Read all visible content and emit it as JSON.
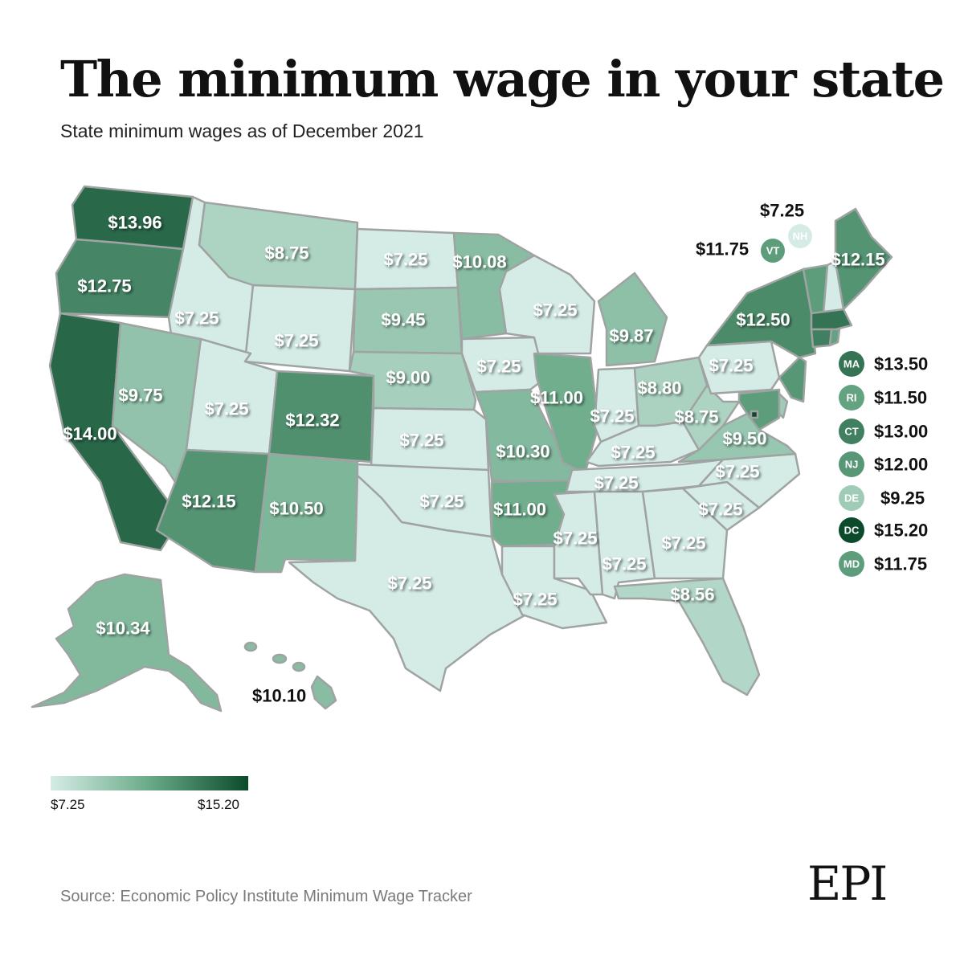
{
  "title": "The minimum wage in your state",
  "subtitle": "State minimum wages as of December 2021",
  "source": "Source: Economic Policy Institute Minimum Wage Tracker",
  "logo": "EPI",
  "legend": {
    "min_label": "$7.25",
    "max_label": "$15.20",
    "min_value": 7.25,
    "max_value": 15.2
  },
  "colors": {
    "low": "#d5ece6",
    "high": "#0c4a2c",
    "border": "#9fa3a2"
  },
  "states": [
    {
      "abbr": "WA",
      "wage": 13.96,
      "label": "$13.96"
    },
    {
      "abbr": "OR",
      "wage": 12.75,
      "label": "$12.75"
    },
    {
      "abbr": "CA",
      "wage": 14.0,
      "label": "$14.00"
    },
    {
      "abbr": "ID",
      "wage": 7.25,
      "label": "$7.25"
    },
    {
      "abbr": "NV",
      "wage": 9.75,
      "label": "$9.75"
    },
    {
      "abbr": "MT",
      "wage": 8.75,
      "label": "$8.75"
    },
    {
      "abbr": "WY",
      "wage": 7.25,
      "label": "$7.25"
    },
    {
      "abbr": "UT",
      "wage": 7.25,
      "label": "$7.25"
    },
    {
      "abbr": "AZ",
      "wage": 12.15,
      "label": "$12.15"
    },
    {
      "abbr": "CO",
      "wage": 12.32,
      "label": "$12.32"
    },
    {
      "abbr": "NM",
      "wage": 10.5,
      "label": "$10.50"
    },
    {
      "abbr": "ND",
      "wage": 7.25,
      "label": "$7.25"
    },
    {
      "abbr": "SD",
      "wage": 9.45,
      "label": "$9.45"
    },
    {
      "abbr": "NE",
      "wage": 9.0,
      "label": "$9.00"
    },
    {
      "abbr": "KS",
      "wage": 7.25,
      "label": "$7.25"
    },
    {
      "abbr": "OK",
      "wage": 7.25,
      "label": "$7.25"
    },
    {
      "abbr": "TX",
      "wage": 7.25,
      "label": "$7.25"
    },
    {
      "abbr": "MN",
      "wage": 10.08,
      "label": "$10.08"
    },
    {
      "abbr": "IA",
      "wage": 7.25,
      "label": "$7.25"
    },
    {
      "abbr": "MO",
      "wage": 10.3,
      "label": "$10.30"
    },
    {
      "abbr": "AR",
      "wage": 11.0,
      "label": "$11.00"
    },
    {
      "abbr": "LA",
      "wage": 7.25,
      "label": "$7.25"
    },
    {
      "abbr": "WI",
      "wage": 7.25,
      "label": "$7.25"
    },
    {
      "abbr": "IL",
      "wage": 11.0,
      "label": "$11.00"
    },
    {
      "abbr": "MI",
      "wage": 9.87,
      "label": "$9.87"
    },
    {
      "abbr": "IN",
      "wage": 7.25,
      "label": "$7.25"
    },
    {
      "abbr": "OH",
      "wage": 8.8,
      "label": "$8.80"
    },
    {
      "abbr": "KY",
      "wage": 7.25,
      "label": "$7.25"
    },
    {
      "abbr": "TN",
      "wage": 7.25,
      "label": "$7.25"
    },
    {
      "abbr": "MS",
      "wage": 7.25,
      "label": "$7.25"
    },
    {
      "abbr": "AL",
      "wage": 7.25,
      "label": "$7.25"
    },
    {
      "abbr": "GA",
      "wage": 7.25,
      "label": "$7.25"
    },
    {
      "abbr": "FL",
      "wage": 8.56,
      "label": "$8.56"
    },
    {
      "abbr": "SC",
      "wage": 7.25,
      "label": "$7.25"
    },
    {
      "abbr": "NC",
      "wage": 7.25,
      "label": "$7.25"
    },
    {
      "abbr": "VA",
      "wage": 9.5,
      "label": "$9.50"
    },
    {
      "abbr": "WV",
      "wage": 8.75,
      "label": "$8.75"
    },
    {
      "abbr": "PA",
      "wage": 7.25,
      "label": "$7.25"
    },
    {
      "abbr": "NY",
      "wage": 12.5,
      "label": "$12.50"
    },
    {
      "abbr": "ME",
      "wage": 12.15,
      "label": "$12.15"
    },
    {
      "abbr": "AK",
      "wage": 10.34,
      "label": "$10.34"
    },
    {
      "abbr": "HI",
      "wage": 10.1,
      "label": "$10.10"
    },
    {
      "abbr": "VT",
      "wage": 11.75,
      "label": "$11.75"
    },
    {
      "abbr": "NH",
      "wage": 7.25,
      "label": "$7.25"
    }
  ],
  "small_states": [
    {
      "abbr": "MA",
      "wage": 13.5,
      "label": "$13.50"
    },
    {
      "abbr": "RI",
      "wage": 11.5,
      "label": "$11.50"
    },
    {
      "abbr": "CT",
      "wage": 13.0,
      "label": "$13.00"
    },
    {
      "abbr": "NJ",
      "wage": 12.0,
      "label": "$12.00"
    },
    {
      "abbr": "DE",
      "wage": 9.25,
      "label": "$9.25"
    },
    {
      "abbr": "DC",
      "wage": 15.2,
      "label": "$15.20"
    },
    {
      "abbr": "MD",
      "wage": 11.75,
      "label": "$11.75"
    }
  ]
}
